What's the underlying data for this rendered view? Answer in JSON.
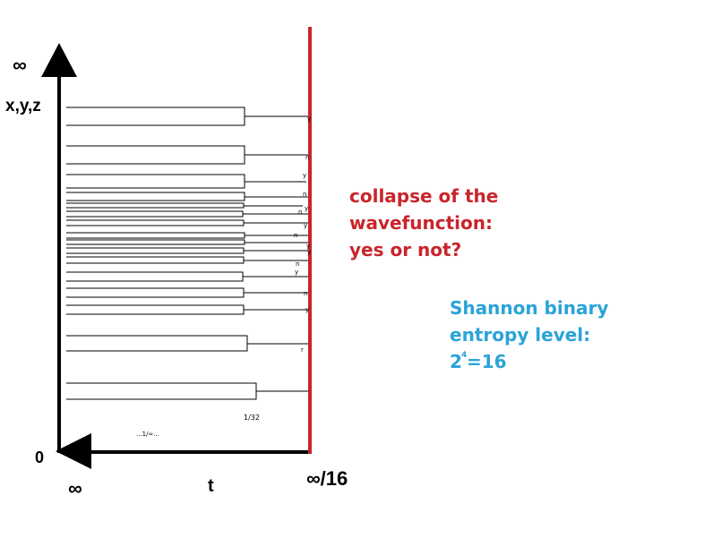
{
  "axes": {
    "y_top_label": "∞",
    "y_name": "x,y,z",
    "origin_label": "0",
    "x_left_label": "∞",
    "x_name": "t",
    "x_right_label": "∞/16"
  },
  "annotations": {
    "scale_fraction": "1/32",
    "scale_limit": "...1/∞..."
  },
  "collapse_text": [
    "collapse of the",
    "wavefunction:",
    "yes or not?"
  ],
  "entropy_text": {
    "line1": "Shannon binary",
    "line2": "entropy level:",
    "formula_base": "2",
    "formula_exp": "4",
    "formula_rest": "=16"
  },
  "outcome_marks": [
    "y",
    "n",
    "y",
    "n",
    "n",
    "y",
    "y",
    "n",
    "y",
    "y",
    "n",
    "y",
    "n",
    "y",
    "r"
  ],
  "colors": {
    "collapse_line": "#c8252b",
    "collapse_text": "#c8252b",
    "entropy_text": "#2aa3d8",
    "axis": "#000000"
  }
}
